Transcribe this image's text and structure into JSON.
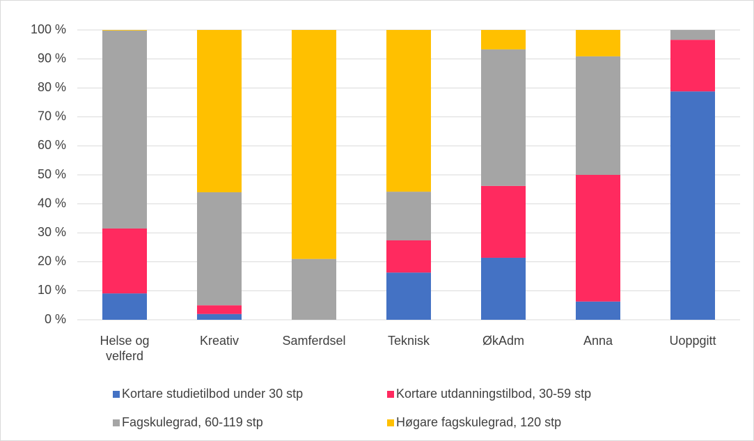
{
  "chart_data": {
    "type": "stacked_bar",
    "categories": [
      "Helse og velferd",
      "Kreativ",
      "Samferdsel",
      "Teknisk",
      "ØkAdm",
      "Anna",
      "Uoppgitt"
    ],
    "series": [
      {
        "name": "Kortare studietilbod under 30 stp",
        "color": "#4472c4",
        "values": [
          9.1,
          2,
          0,
          16.3,
          21.4,
          6.3,
          78.8
        ]
      },
      {
        "name": "Kortare utdanningstilbod, 30-59 stp",
        "color": "#ff2a5f",
        "values": [
          22.4,
          3,
          0,
          11.1,
          24.8,
          43.7,
          17.8
        ]
      },
      {
        "name": "Fagskulegrad, 60-119 stp",
        "color": "#a5a5a5",
        "values": [
          68.3,
          39,
          21,
          16.8,
          47.1,
          40.9,
          3.4
        ]
      },
      {
        "name": "Høgare fagskulegrad, 120 stp",
        "color": "#ffc000",
        "values": [
          0.2,
          56,
          79,
          55.8,
          6.7,
          9.1,
          0
        ]
      }
    ],
    "ylim": [
      0,
      100
    ],
    "yticks": [
      {
        "value": 0,
        "label": "0 %"
      },
      {
        "value": 10,
        "label": "10 %"
      },
      {
        "value": 20,
        "label": "20 %"
      },
      {
        "value": 30,
        "label": "30 %"
      },
      {
        "value": 40,
        "label": "40 %"
      },
      {
        "value": 50,
        "label": "50 %"
      },
      {
        "value": 60,
        "label": "60 %"
      },
      {
        "value": 70,
        "label": "70 %"
      },
      {
        "value": 80,
        "label": "80 %"
      },
      {
        "value": 90,
        "label": "90 %"
      },
      {
        "value": 100,
        "label": "100 %"
      }
    ],
    "grid": true,
    "legend": "bottom"
  }
}
